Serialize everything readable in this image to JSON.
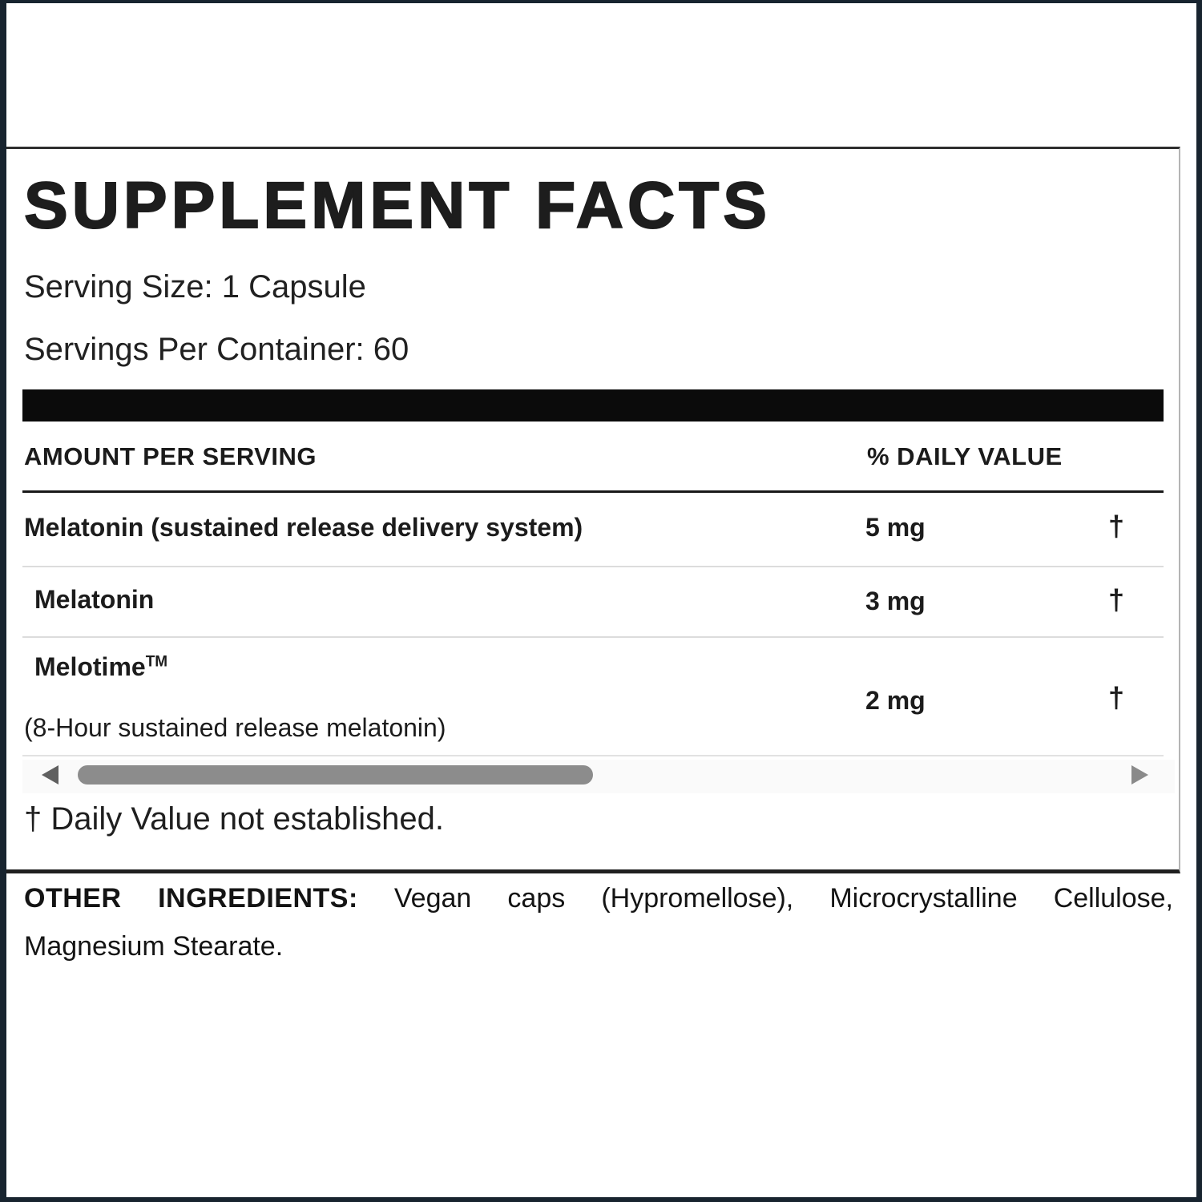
{
  "colors": {
    "outer_border": "#18242f",
    "card_border_dark": "#2e2e2e",
    "card_border_light": "#b4b4b4",
    "thick_bar": "#0b0b0b",
    "row_divider": "#dcdcdc",
    "scroll_thumb": "#8c8c8c",
    "text": "#1c1c1c"
  },
  "icons": {
    "scroll_left": "left-pointing-triangle",
    "scroll_right": "right-pointing-triangle"
  },
  "header": {
    "title": "SUPPLEMENT FACTS",
    "serving_size": "Serving Size: 1 Capsule",
    "servings_per_container": "Servings Per Container: 60"
  },
  "table": {
    "columns": {
      "amount": "AMOUNT PER SERVING",
      "daily_value": "% DAILY VALUE"
    },
    "rows": [
      {
        "name": "Melatonin (sustained release delivery system)",
        "amount": "5 mg",
        "daily_value": "†"
      },
      {
        "name": "Melatonin",
        "amount": "3 mg",
        "daily_value": "†"
      },
      {
        "name": "Melotime",
        "tm": "TM",
        "subtext": "(8-Hour sustained release melatonin)",
        "amount": "2 mg",
        "daily_value": "†"
      }
    ],
    "footnote": "† Daily Value not established."
  },
  "other_ingredients": {
    "label": "OTHER INGREDIENTS:",
    "line1_rest": "Vegan caps (Hypromellose), Microcrystalline Cellulose,",
    "line2": "Magnesium Stearate."
  }
}
